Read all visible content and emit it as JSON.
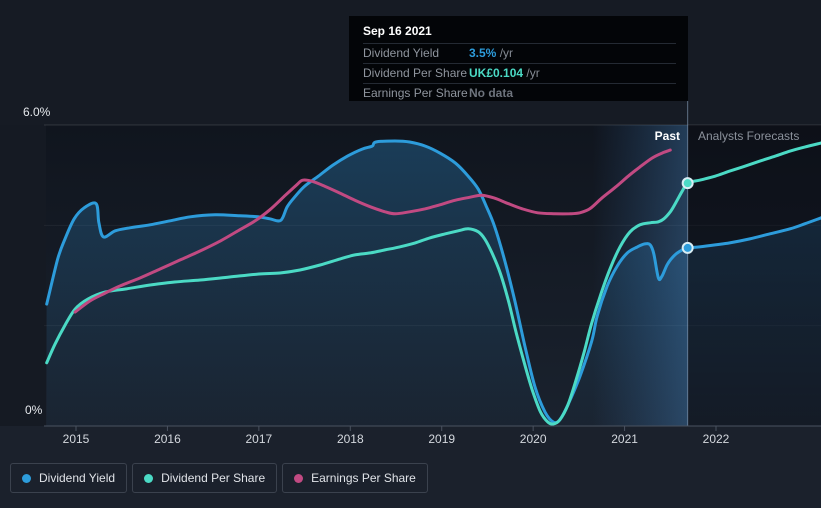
{
  "tooltip": {
    "date": "Sep 16 2021",
    "rows": [
      {
        "label": "Dividend Yield",
        "value": "3.5%",
        "suffix": " /yr",
        "value_color": "#2D9CDB"
      },
      {
        "label": "Dividend Per Share",
        "value": "UK£0.104",
        "suffix": " /yr",
        "value_color": "#4BDAC5"
      },
      {
        "label": "Earnings Per Share",
        "value": "No data",
        "suffix": "",
        "value_color": "#6e747d"
      }
    ]
  },
  "labels": {
    "past": "Past",
    "forecast": "Analysts Forecasts"
  },
  "y_axis": {
    "top_label": "6.0%",
    "bottom_label": "0%"
  },
  "legend": [
    {
      "label": "Dividend Yield",
      "color": "#2D9CDB"
    },
    {
      "label": "Dividend Per Share",
      "color": "#4BDAC5"
    },
    {
      "label": "Earnings Per Share",
      "color": "#C14A82"
    }
  ],
  "chart_data": {
    "type": "line",
    "title": "",
    "xlabel": "",
    "ylabel": "",
    "unit": "%",
    "ylim": [
      0,
      6
    ],
    "grid": "horizontal",
    "legend_position": "bottom-left",
    "x_ticks": [
      2015,
      2016,
      2017,
      2018,
      2019,
      2020,
      2021,
      2022
    ],
    "y_gridlines": [
      6,
      4,
      2
    ],
    "hover_band_start": 2020.65,
    "past_end": 2021.69,
    "markers": [
      {
        "series": "Dividend Yield",
        "year": 2021.69,
        "value": 3.55
      },
      {
        "series": "Dividend Per Share",
        "year": 2021.69,
        "value": 4.84
      }
    ],
    "series": [
      {
        "name": "Dividend Yield",
        "slug": "dividend-yield",
        "color": "#2D9CDB",
        "area": true,
        "points": [
          [
            2014.68,
            2.43
          ],
          [
            2014.8,
            3.33
          ],
          [
            2014.88,
            3.73
          ],
          [
            2014.98,
            4.13
          ],
          [
            2015.09,
            4.35
          ],
          [
            2015.22,
            4.43
          ],
          [
            2015.25,
            4.05
          ],
          [
            2015.3,
            3.77
          ],
          [
            2015.43,
            3.89
          ],
          [
            2015.59,
            3.95
          ],
          [
            2015.81,
            4.01
          ],
          [
            2016.03,
            4.09
          ],
          [
            2016.25,
            4.17
          ],
          [
            2016.52,
            4.21
          ],
          [
            2016.79,
            4.19
          ],
          [
            2016.99,
            4.17
          ],
          [
            2017.12,
            4.13
          ],
          [
            2017.24,
            4.1
          ],
          [
            2017.31,
            4.37
          ],
          [
            2017.4,
            4.58
          ],
          [
            2017.5,
            4.78
          ],
          [
            2017.65,
            4.98
          ],
          [
            2017.81,
            5.2
          ],
          [
            2017.97,
            5.38
          ],
          [
            2018.13,
            5.52
          ],
          [
            2018.24,
            5.58
          ],
          [
            2018.28,
            5.66
          ],
          [
            2018.49,
            5.68
          ],
          [
            2018.65,
            5.66
          ],
          [
            2018.82,
            5.58
          ],
          [
            2018.98,
            5.44
          ],
          [
            2019.15,
            5.24
          ],
          [
            2019.29,
            4.98
          ],
          [
            2019.4,
            4.72
          ],
          [
            2019.49,
            4.37
          ],
          [
            2019.58,
            3.97
          ],
          [
            2019.69,
            3.29
          ],
          [
            2019.8,
            2.49
          ],
          [
            2019.91,
            1.59
          ],
          [
            2020.02,
            0.78
          ],
          [
            2020.13,
            0.28
          ],
          [
            2020.22,
            0.08
          ],
          [
            2020.29,
            0.12
          ],
          [
            2020.38,
            0.42
          ],
          [
            2020.51,
            0.98
          ],
          [
            2020.64,
            1.69
          ],
          [
            2020.7,
            2.19
          ],
          [
            2020.81,
            2.79
          ],
          [
            2020.92,
            3.19
          ],
          [
            2021.03,
            3.45
          ],
          [
            2021.14,
            3.57
          ],
          [
            2021.22,
            3.63
          ],
          [
            2021.28,
            3.61
          ],
          [
            2021.32,
            3.43
          ],
          [
            2021.37,
            2.95
          ],
          [
            2021.41,
            2.99
          ],
          [
            2021.47,
            3.23
          ],
          [
            2021.55,
            3.41
          ],
          [
            2021.63,
            3.51
          ],
          [
            2021.69,
            3.55
          ],
          [
            2021.82,
            3.57
          ],
          [
            2021.99,
            3.61
          ],
          [
            2022.15,
            3.65
          ],
          [
            2022.37,
            3.73
          ],
          [
            2022.59,
            3.83
          ],
          [
            2022.81,
            3.93
          ],
          [
            2022.97,
            4.03
          ],
          [
            2023.15,
            4.15
          ]
        ]
      },
      {
        "name": "Dividend Per Share",
        "slug": "dividend-per-share",
        "color": "#4BDAC5",
        "area": false,
        "points": [
          [
            2014.68,
            1.26
          ],
          [
            2014.77,
            1.63
          ],
          [
            2014.88,
            2.01
          ],
          [
            2014.99,
            2.33
          ],
          [
            2015.13,
            2.53
          ],
          [
            2015.32,
            2.67
          ],
          [
            2015.54,
            2.73
          ],
          [
            2015.81,
            2.81
          ],
          [
            2016.08,
            2.87
          ],
          [
            2016.36,
            2.91
          ],
          [
            2016.68,
            2.97
          ],
          [
            2017.0,
            3.03
          ],
          [
            2017.23,
            3.05
          ],
          [
            2017.45,
            3.11
          ],
          [
            2017.67,
            3.21
          ],
          [
            2017.89,
            3.33
          ],
          [
            2018.05,
            3.41
          ],
          [
            2018.22,
            3.45
          ],
          [
            2018.38,
            3.51
          ],
          [
            2018.54,
            3.57
          ],
          [
            2018.71,
            3.65
          ],
          [
            2018.87,
            3.75
          ],
          [
            2019.04,
            3.83
          ],
          [
            2019.18,
            3.89
          ],
          [
            2019.29,
            3.93
          ],
          [
            2019.4,
            3.87
          ],
          [
            2019.47,
            3.73
          ],
          [
            2019.55,
            3.45
          ],
          [
            2019.64,
            3.05
          ],
          [
            2019.73,
            2.49
          ],
          [
            2019.81,
            1.89
          ],
          [
            2019.9,
            1.28
          ],
          [
            2019.99,
            0.72
          ],
          [
            2020.08,
            0.28
          ],
          [
            2020.16,
            0.08
          ],
          [
            2020.22,
            0.04
          ],
          [
            2020.29,
            0.12
          ],
          [
            2020.38,
            0.42
          ],
          [
            2020.47,
            0.92
          ],
          [
            2020.56,
            1.49
          ],
          [
            2020.64,
            2.05
          ],
          [
            2020.73,
            2.57
          ],
          [
            2020.84,
            3.13
          ],
          [
            2020.95,
            3.57
          ],
          [
            2021.06,
            3.87
          ],
          [
            2021.17,
            4.01
          ],
          [
            2021.28,
            4.05
          ],
          [
            2021.37,
            4.07
          ],
          [
            2021.43,
            4.13
          ],
          [
            2021.5,
            4.27
          ],
          [
            2021.56,
            4.45
          ],
          [
            2021.63,
            4.68
          ],
          [
            2021.69,
            4.84
          ],
          [
            2021.82,
            4.9
          ],
          [
            2021.99,
            4.98
          ],
          [
            2022.15,
            5.08
          ],
          [
            2022.32,
            5.18
          ],
          [
            2022.48,
            5.28
          ],
          [
            2022.65,
            5.38
          ],
          [
            2022.81,
            5.48
          ],
          [
            2022.97,
            5.56
          ],
          [
            2023.15,
            5.64
          ]
        ]
      },
      {
        "name": "Earnings Per Share",
        "slug": "earnings-per-share",
        "color": "#C14A82",
        "area": false,
        "points": [
          [
            2014.99,
            2.27
          ],
          [
            2015.15,
            2.49
          ],
          [
            2015.32,
            2.65
          ],
          [
            2015.48,
            2.79
          ],
          [
            2015.7,
            2.95
          ],
          [
            2015.92,
            3.13
          ],
          [
            2016.14,
            3.31
          ],
          [
            2016.36,
            3.49
          ],
          [
            2016.58,
            3.69
          ],
          [
            2016.79,
            3.91
          ],
          [
            2016.96,
            4.09
          ],
          [
            2017.12,
            4.31
          ],
          [
            2017.29,
            4.6
          ],
          [
            2017.41,
            4.8
          ],
          [
            2017.48,
            4.9
          ],
          [
            2017.58,
            4.88
          ],
          [
            2017.72,
            4.78
          ],
          [
            2017.89,
            4.64
          ],
          [
            2018.05,
            4.5
          ],
          [
            2018.22,
            4.37
          ],
          [
            2018.38,
            4.27
          ],
          [
            2018.49,
            4.23
          ],
          [
            2018.65,
            4.27
          ],
          [
            2018.82,
            4.33
          ],
          [
            2018.98,
            4.41
          ],
          [
            2019.15,
            4.5
          ],
          [
            2019.31,
            4.56
          ],
          [
            2019.44,
            4.6
          ],
          [
            2019.58,
            4.54
          ],
          [
            2019.73,
            4.43
          ],
          [
            2019.88,
            4.33
          ],
          [
            2020.05,
            4.25
          ],
          [
            2020.24,
            4.23
          ],
          [
            2020.4,
            4.23
          ],
          [
            2020.51,
            4.25
          ],
          [
            2020.62,
            4.33
          ],
          [
            2020.75,
            4.54
          ],
          [
            2020.9,
            4.76
          ],
          [
            2021.04,
            4.98
          ],
          [
            2021.18,
            5.18
          ],
          [
            2021.3,
            5.34
          ],
          [
            2021.41,
            5.44
          ],
          [
            2021.5,
            5.5
          ]
        ]
      }
    ]
  }
}
